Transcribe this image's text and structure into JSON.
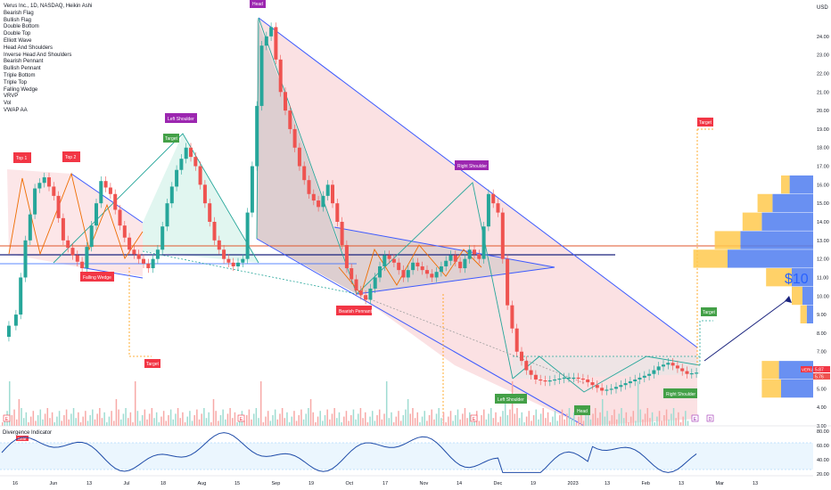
{
  "header": {
    "symbol_line": "Verus Inc., 1D, NASDAQ, Heikin Ashi"
  },
  "indicators": [
    "Bearish Flag",
    "Bullish Flag",
    "Double Bottom",
    "Double Top",
    "Elliott Wave",
    "Head And Shoulders",
    "Inverse Head And Shoulders",
    "Bearish Pennant",
    "Bullish Pennant",
    "Triple Bottom",
    "Triple Top",
    "Falling Wedge",
    "VRVP",
    "Vol",
    "VWAP AA"
  ],
  "price_axis": {
    "currency": "USD",
    "ticks": [
      "24.00",
      "23.00",
      "22.00",
      "21.00",
      "20.00",
      "19.00",
      "18.00",
      "17.00",
      "16.00",
      "15.00",
      "14.00",
      "13.00",
      "12.00",
      "11.00",
      "10.00",
      "9.00",
      "8.00",
      "7.00",
      "6.00",
      "5.00",
      "4.00",
      "3.00"
    ],
    "last_symbol": "VERU",
    "last_price": "5.87",
    "vwap_price": "5.76"
  },
  "osc_axis": {
    "ticks": [
      "80.00",
      "60.00",
      "40.00",
      "20.00"
    ]
  },
  "time_axis": [
    "16",
    "Jun",
    "13",
    "Jul",
    "18",
    "Aug",
    "15",
    "Sep",
    "19",
    "Oct",
    "17",
    "Nov",
    "14",
    "Dec",
    "19",
    "2023",
    "13",
    "Feb",
    "13",
    "Mar",
    "13"
  ],
  "pattern_labels": {
    "head_top": "Head",
    "left_shoulder_top": "Left Shoulder",
    "target_top": "Target",
    "top1": "Top 1",
    "top2": "Top 2",
    "right_shoulder_top": "Right Shoulder",
    "target_right": "Target",
    "falling_wedge": "Falling Wedge",
    "bearish_pennant": "Bearish Pennant",
    "target_bottom": "Target",
    "left_shoulder_bottom": "Left Shoulder",
    "head_bottom": "Head",
    "right_shoulder_bottom": "Right Shoulder",
    "target_green": "Target",
    "annotation_price": "$10"
  },
  "oscillator": {
    "title": "Divergence Indicator",
    "badge": "Bear"
  },
  "event_markers": [
    "E",
    "D"
  ],
  "chart_data": {
    "type": "candlestick",
    "title": "Verus Inc., 1D, NASDAQ, Heikin Ashi",
    "ylim": [
      3,
      25
    ],
    "price_path": [
      [
        0,
        7.8
      ],
      [
        3,
        9.0
      ],
      [
        5,
        13.0
      ],
      [
        7,
        15.8
      ],
      [
        9,
        16.4
      ],
      [
        11,
        15.4
      ],
      [
        13,
        13.0
      ],
      [
        15,
        12.2
      ],
      [
        17,
        11.5
      ],
      [
        19,
        13.8
      ],
      [
        21,
        16.2
      ],
      [
        23,
        15.5
      ],
      [
        25,
        13.8
      ],
      [
        27,
        12.5
      ],
      [
        29,
        12.0
      ],
      [
        31,
        11.5
      ],
      [
        33,
        12.5
      ],
      [
        35,
        15.0
      ],
      [
        37,
        16.8
      ],
      [
        39,
        18.0
      ],
      [
        41,
        17.0
      ],
      [
        43,
        15.0
      ],
      [
        45,
        13.0
      ],
      [
        47,
        12.0
      ],
      [
        49,
        11.6
      ],
      [
        51,
        12.0
      ],
      [
        53,
        17.0
      ],
      [
        55,
        23.5
      ],
      [
        57,
        24.5
      ],
      [
        59,
        21.0
      ],
      [
        61,
        19.0
      ],
      [
        63,
        17.0
      ],
      [
        65,
        15.5
      ],
      [
        67,
        14.8
      ],
      [
        69,
        16.0
      ],
      [
        71,
        14.0
      ],
      [
        73,
        11.5
      ],
      [
        75,
        10.3
      ],
      [
        77,
        9.8
      ],
      [
        79,
        11.0
      ],
      [
        81,
        12.2
      ],
      [
        83,
        11.8
      ],
      [
        85,
        11.0
      ],
      [
        87,
        11.8
      ],
      [
        89,
        11.4
      ],
      [
        91,
        11.0
      ],
      [
        93,
        11.6
      ],
      [
        95,
        12.2
      ],
      [
        97,
        11.5
      ],
      [
        99,
        12.5
      ],
      [
        101,
        12.0
      ],
      [
        103,
        15.5
      ],
      [
        105,
        14.5
      ],
      [
        107,
        9.5
      ],
      [
        109,
        7.0
      ],
      [
        111,
        6.0
      ],
      [
        113,
        5.5
      ],
      [
        115,
        5.4
      ],
      [
        117,
        5.5
      ],
      [
        119,
        5.6
      ],
      [
        121,
        5.6
      ],
      [
        123,
        5.5
      ],
      [
        125,
        5.2
      ],
      [
        127,
        4.9
      ],
      [
        129,
        5.0
      ],
      [
        131,
        5.2
      ],
      [
        133,
        5.4
      ],
      [
        135,
        5.6
      ],
      [
        137,
        5.8
      ],
      [
        139,
        6.2
      ],
      [
        141,
        6.4
      ],
      [
        143,
        6.1
      ],
      [
        145,
        5.8
      ],
      [
        147,
        5.87
      ]
    ],
    "volume_profile": [
      {
        "price": 16.0,
        "up": 0.11,
        "down": 0.04
      },
      {
        "price": 15.0,
        "up": 0.19,
        "down": 0.07
      },
      {
        "price": 14.0,
        "up": 0.24,
        "down": 0.09
      },
      {
        "price": 13.0,
        "up": 0.34,
        "down": 0.12
      },
      {
        "price": 12.0,
        "up": 0.4,
        "down": 0.16
      },
      {
        "price": 11.0,
        "up": 0.1,
        "down": 0.12
      },
      {
        "price": 10.0,
        "up": 0.05,
        "down": 0.05
      },
      {
        "price": 9.0,
        "up": 0.03,
        "down": 0.03
      },
      {
        "price": 6.0,
        "up": 0.16,
        "down": 0.08
      },
      {
        "price": 5.0,
        "up": 0.15,
        "down": 0.09
      }
    ],
    "oscillator_range": [
      20,
      85
    ]
  },
  "colors": {
    "up": "#26a69a",
    "down": "#ef5350",
    "blue": "#2962ff",
    "orange": "#ff9800",
    "purple": "#9c27b0",
    "green_tag": "#43a047",
    "red_tag": "#f23645"
  }
}
